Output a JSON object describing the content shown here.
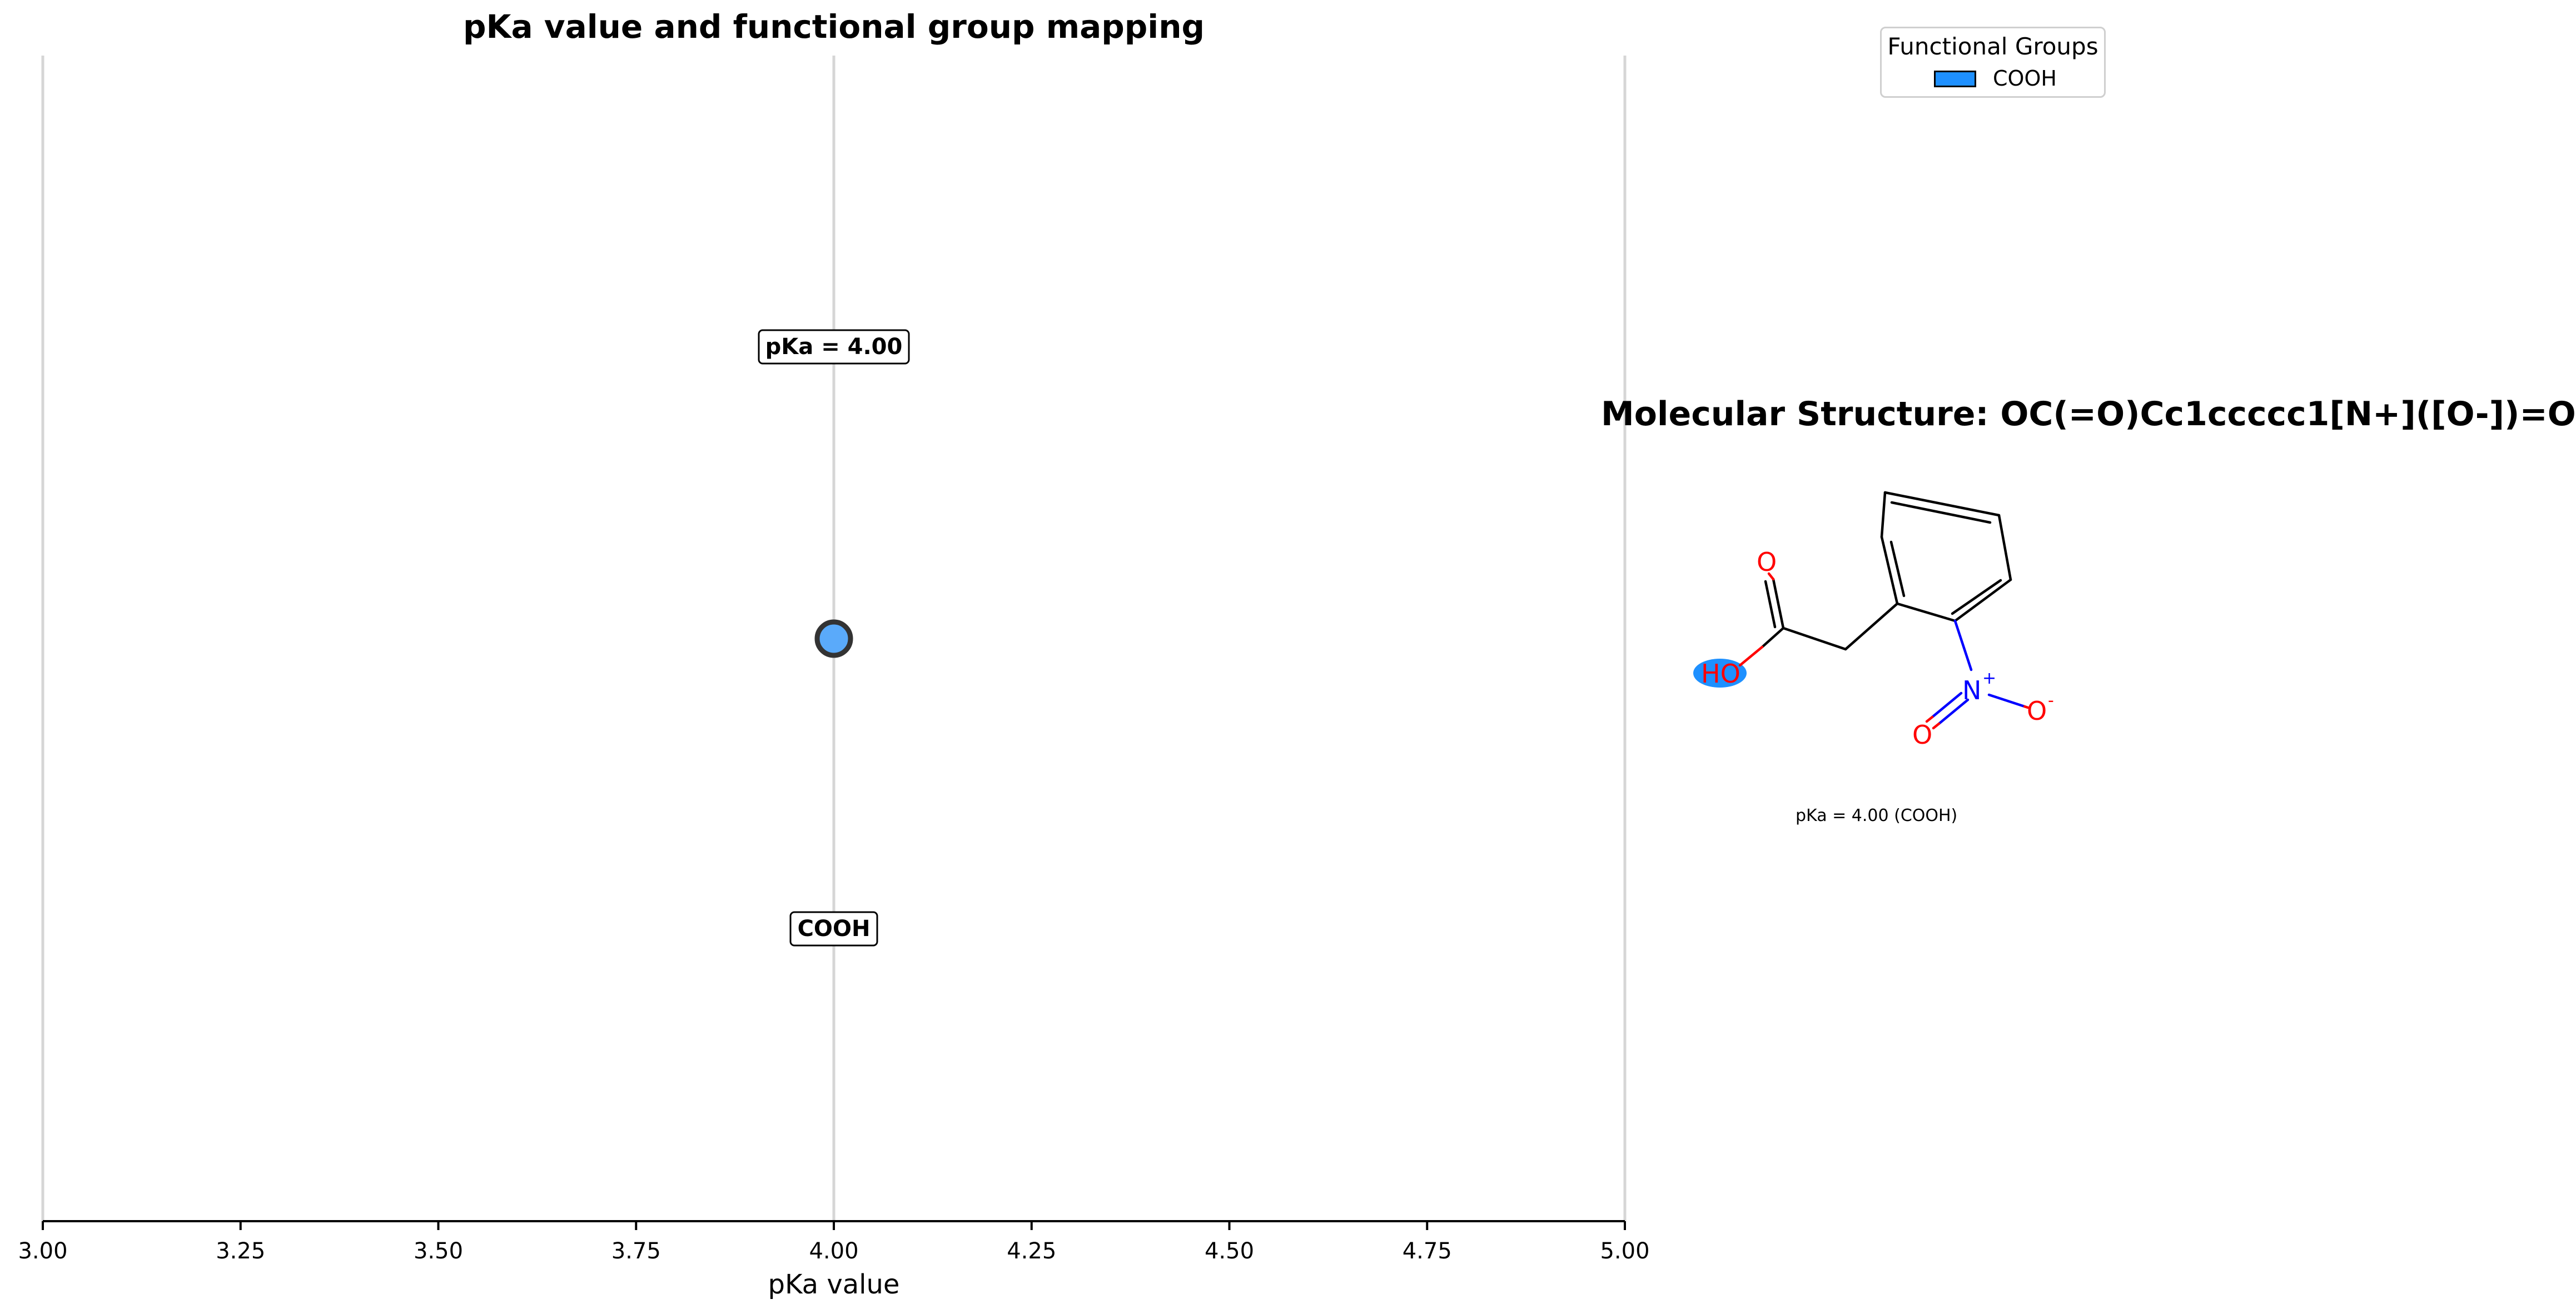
{
  "chart_data": {
    "type": "scatter",
    "title": "pKa value and functional group mapping",
    "xlabel": "pKa value",
    "ylabel": "",
    "xlim": [
      3.0,
      5.0
    ],
    "xticks": [
      "3.00",
      "3.25",
      "3.50",
      "3.75",
      "4.00",
      "4.25",
      "4.50",
      "4.75",
      "5.00"
    ],
    "grid": "vertical lines at 3.00, 4.00, 5.00",
    "points": [
      {
        "x": 4.0,
        "group": "COOH",
        "pka_label": "pKa = 4.00",
        "group_label": "COOH",
        "color": "#5aaafa"
      }
    ],
    "legend": {
      "title": "Functional Groups",
      "placement": "top-right",
      "entries": [
        {
          "label": "COOH",
          "color": "#1e90ff"
        }
      ]
    }
  },
  "molecule": {
    "title": "Molecular Structure: OC(=O)Cc1ccccc1[N+]([O-])=O",
    "caption": "pKa = 4.00 (COOH)",
    "atoms": {
      "o_carbonyl": "O",
      "oh": "HO",
      "n": "N",
      "n_charge": "+",
      "o_nitro_minus": "O",
      "o_minus_charge": "-",
      "o_nitro_double": "O"
    },
    "colors": {
      "oxygen": "#ff0000",
      "nitrogen": "#0000ff",
      "bond": "#000000",
      "highlight": "#1e90ff"
    }
  }
}
